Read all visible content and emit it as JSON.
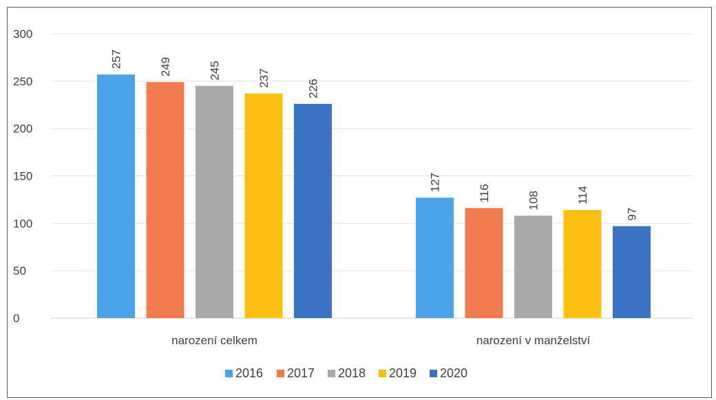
{
  "chart_data": {
    "type": "bar",
    "categories": [
      "narození celkem",
      "narození v manželství"
    ],
    "series": [
      {
        "name": "2016",
        "color": "#4da3e8",
        "values": [
          257,
          127
        ]
      },
      {
        "name": "2017",
        "color": "#f07b4f",
        "values": [
          249,
          116
        ]
      },
      {
        "name": "2018",
        "color": "#a9a9a9",
        "values": [
          245,
          108
        ]
      },
      {
        "name": "2019",
        "color": "#fdc010",
        "values": [
          237,
          114
        ]
      },
      {
        "name": "2020",
        "color": "#3a72c4",
        "values": [
          226,
          97
        ]
      }
    ],
    "y_ticks": [
      "0",
      "50",
      "100",
      "150",
      "200",
      "250",
      "300"
    ],
    "ylim": [
      0,
      300
    ],
    "grid": true,
    "legend_position": "bottom",
    "data_labels": true
  }
}
